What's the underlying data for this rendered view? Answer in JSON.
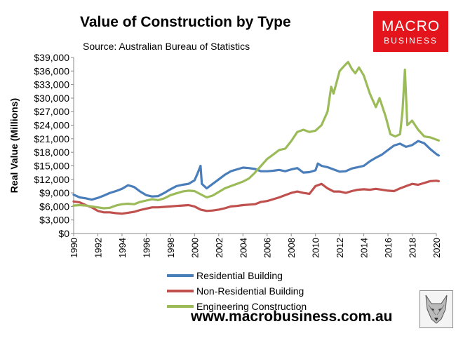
{
  "header": {
    "title": "Value of Construction by Type",
    "subtitle": "Source: Australian Bureau of Statistics"
  },
  "brand": {
    "logo_top": "MACRO",
    "logo_bottom": "BUSINESS",
    "website": "www.macrobusiness.com.au",
    "logo_color": "#e3141b",
    "wolf_icon": "wolf-head-icon"
  },
  "chart_data": {
    "type": "line",
    "title": "Value of Construction by Type",
    "subtitle": "Source: Australian Bureau of Statistics",
    "xlabel": "",
    "ylabel": "Real Value (Millions)",
    "xlim": [
      1990,
      2020
    ],
    "ylim": [
      0,
      39000
    ],
    "x_ticks": [
      "1990",
      "1992",
      "1994",
      "1996",
      "1998",
      "2000",
      "2002",
      "2004",
      "2006",
      "2008",
      "2010",
      "2012",
      "2014",
      "2016",
      "2018",
      "2020"
    ],
    "y_ticks": [
      "$0",
      "$3,000",
      "$6,000",
      "$9,000",
      "$12,000",
      "$15,000",
      "$18,000",
      "$21,000",
      "$24,000",
      "$27,000",
      "$30,000",
      "$33,000",
      "$36,000",
      "$39,000"
    ],
    "legend_position": "bottom",
    "grid": false,
    "series": [
      {
        "name": "Residential Building",
        "color": "#4a7ebb",
        "points": [
          [
            1990,
            8600
          ],
          [
            1990.5,
            8000
          ],
          [
            1991,
            7800
          ],
          [
            1991.5,
            7500
          ],
          [
            1992,
            7900
          ],
          [
            1992.5,
            8400
          ],
          [
            1993,
            9000
          ],
          [
            1993.5,
            9400
          ],
          [
            1994,
            9900
          ],
          [
            1994.5,
            10700
          ],
          [
            1995,
            10300
          ],
          [
            1995.5,
            9300
          ],
          [
            1996,
            8500
          ],
          [
            1996.5,
            8200
          ],
          [
            1997,
            8300
          ],
          [
            1997.5,
            9000
          ],
          [
            1998,
            9800
          ],
          [
            1998.5,
            10500
          ],
          [
            1999,
            10800
          ],
          [
            1999.5,
            11000
          ],
          [
            2000,
            11800
          ],
          [
            2000.2,
            13000
          ],
          [
            2000.5,
            15000
          ],
          [
            2000.6,
            11000
          ],
          [
            2001,
            10000
          ],
          [
            2001.5,
            11000
          ],
          [
            2002,
            12000
          ],
          [
            2002.5,
            13000
          ],
          [
            2003,
            13800
          ],
          [
            2003.5,
            14200
          ],
          [
            2004,
            14600
          ],
          [
            2004.5,
            14500
          ],
          [
            2005,
            14300
          ],
          [
            2005.5,
            13800
          ],
          [
            2006,
            13800
          ],
          [
            2006.5,
            13900
          ],
          [
            2007,
            14100
          ],
          [
            2007.5,
            13800
          ],
          [
            2008,
            14200
          ],
          [
            2008.5,
            14500
          ],
          [
            2009,
            13500
          ],
          [
            2009.5,
            13600
          ],
          [
            2010,
            14000
          ],
          [
            2010.2,
            15500
          ],
          [
            2010.5,
            15000
          ],
          [
            2011,
            14700
          ],
          [
            2011.5,
            14200
          ],
          [
            2012,
            13700
          ],
          [
            2012.5,
            13800
          ],
          [
            2013,
            14400
          ],
          [
            2013.5,
            14700
          ],
          [
            2014,
            15000
          ],
          [
            2014.5,
            16000
          ],
          [
            2015,
            16800
          ],
          [
            2015.5,
            17500
          ],
          [
            2016,
            18500
          ],
          [
            2016.5,
            19500
          ],
          [
            2017,
            19900
          ],
          [
            2017.5,
            19200
          ],
          [
            2018,
            19600
          ],
          [
            2018.5,
            20500
          ],
          [
            2019,
            20000
          ],
          [
            2019.5,
            18700
          ],
          [
            2020,
            17600
          ],
          [
            2020.2,
            17300
          ]
        ]
      },
      {
        "name": "Non-Residential Building",
        "color": "#c0504d",
        "points": [
          [
            1990,
            7100
          ],
          [
            1990.5,
            6900
          ],
          [
            1991,
            6300
          ],
          [
            1991.5,
            5800
          ],
          [
            1992,
            5000
          ],
          [
            1992.5,
            4700
          ],
          [
            1993,
            4700
          ],
          [
            1993.5,
            4500
          ],
          [
            1994,
            4400
          ],
          [
            1994.5,
            4600
          ],
          [
            1995,
            4800
          ],
          [
            1995.5,
            5200
          ],
          [
            1996,
            5500
          ],
          [
            1996.5,
            5800
          ],
          [
            1997,
            5800
          ],
          [
            1997.5,
            5900
          ],
          [
            1998,
            6000
          ],
          [
            1998.5,
            6100
          ],
          [
            1999,
            6200
          ],
          [
            1999.5,
            6300
          ],
          [
            2000,
            6000
          ],
          [
            2000.5,
            5300
          ],
          [
            2001,
            5000
          ],
          [
            2001.5,
            5100
          ],
          [
            2002,
            5300
          ],
          [
            2002.5,
            5600
          ],
          [
            2003,
            6000
          ],
          [
            2003.5,
            6100
          ],
          [
            2004,
            6300
          ],
          [
            2004.5,
            6400
          ],
          [
            2005,
            6500
          ],
          [
            2005.5,
            7000
          ],
          [
            2006,
            7200
          ],
          [
            2006.5,
            7600
          ],
          [
            2007,
            8000
          ],
          [
            2007.5,
            8500
          ],
          [
            2008,
            9000
          ],
          [
            2008.5,
            9300
          ],
          [
            2009,
            9000
          ],
          [
            2009.5,
            8800
          ],
          [
            2010,
            10500
          ],
          [
            2010.5,
            11000
          ],
          [
            2011,
            10000
          ],
          [
            2011.5,
            9300
          ],
          [
            2012,
            9300
          ],
          [
            2012.5,
            9000
          ],
          [
            2013,
            9400
          ],
          [
            2013.5,
            9700
          ],
          [
            2014,
            9800
          ],
          [
            2014.5,
            9700
          ],
          [
            2015,
            9900
          ],
          [
            2015.5,
            9700
          ],
          [
            2016,
            9500
          ],
          [
            2016.5,
            9400
          ],
          [
            2017,
            10000
          ],
          [
            2017.5,
            10500
          ],
          [
            2018,
            11000
          ],
          [
            2018.5,
            10800
          ],
          [
            2019,
            11200
          ],
          [
            2019.5,
            11600
          ],
          [
            2020,
            11700
          ],
          [
            2020.2,
            11600
          ]
        ]
      },
      {
        "name": "Engineering Construction",
        "color": "#9bbb59",
        "points": [
          [
            1990,
            6200
          ],
          [
            1990.5,
            6300
          ],
          [
            1991,
            6200
          ],
          [
            1991.5,
            6000
          ],
          [
            1992,
            5800
          ],
          [
            1992.5,
            5600
          ],
          [
            1993,
            5700
          ],
          [
            1993.5,
            6200
          ],
          [
            1994,
            6500
          ],
          [
            1994.5,
            6600
          ],
          [
            1995,
            6500
          ],
          [
            1995.5,
            7000
          ],
          [
            1996,
            7300
          ],
          [
            1996.5,
            7600
          ],
          [
            1997,
            7400
          ],
          [
            1997.5,
            7800
          ],
          [
            1998,
            8500
          ],
          [
            1998.5,
            8900
          ],
          [
            1999,
            9300
          ],
          [
            1999.5,
            9500
          ],
          [
            2000,
            9400
          ],
          [
            2000.5,
            8700
          ],
          [
            2001,
            8000
          ],
          [
            2001.5,
            8400
          ],
          [
            2002,
            9200
          ],
          [
            2002.5,
            10000
          ],
          [
            2003,
            10500
          ],
          [
            2003.5,
            11000
          ],
          [
            2004,
            11500
          ],
          [
            2004.5,
            12200
          ],
          [
            2005,
            13500
          ],
          [
            2005.5,
            15000
          ],
          [
            2006,
            16500
          ],
          [
            2006.5,
            17500
          ],
          [
            2007,
            18500
          ],
          [
            2007.5,
            18800
          ],
          [
            2008,
            20500
          ],
          [
            2008.5,
            22500
          ],
          [
            2009,
            23000
          ],
          [
            2009.5,
            22500
          ],
          [
            2010,
            22800
          ],
          [
            2010.5,
            24000
          ],
          [
            2011,
            27000
          ],
          [
            2011.3,
            32500
          ],
          [
            2011.5,
            31000
          ],
          [
            2012,
            36000
          ],
          [
            2012.5,
            37500
          ],
          [
            2012.7,
            38000
          ],
          [
            2013,
            36500
          ],
          [
            2013.3,
            35500
          ],
          [
            2013.6,
            36800
          ],
          [
            2014,
            35000
          ],
          [
            2014.5,
            31000
          ],
          [
            2015,
            28000
          ],
          [
            2015.3,
            30000
          ],
          [
            2015.8,
            26000
          ],
          [
            2016.2,
            22000
          ],
          [
            2016.6,
            21500
          ],
          [
            2017,
            22000
          ],
          [
            2017.2,
            27000
          ],
          [
            2017.4,
            36300
          ],
          [
            2017.6,
            24000
          ],
          [
            2018,
            25000
          ],
          [
            2018.5,
            23000
          ],
          [
            2019,
            21500
          ],
          [
            2019.5,
            21300
          ],
          [
            2020,
            20800
          ],
          [
            2020.2,
            20600
          ]
        ]
      }
    ]
  }
}
